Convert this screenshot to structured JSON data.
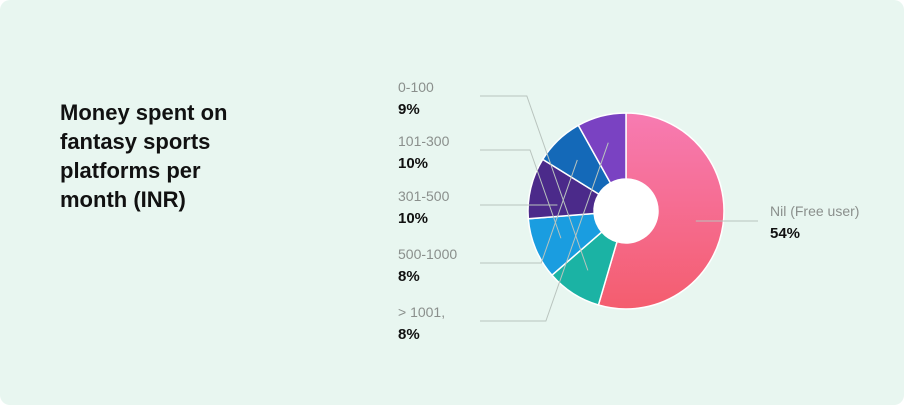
{
  "title": "Money spent on\nfantasy sports\nplatforms per\nmonth (INR)",
  "chart_data": {
    "type": "pie",
    "title": "Money spent on fantasy sports platforms per month (INR)",
    "categories": [
      "Nil (Free user)",
      "0-100",
      "101-300",
      "301-500",
      "500-1000",
      "> 1001,"
    ],
    "values": [
      54,
      9,
      10,
      10,
      8,
      8
    ],
    "value_labels": [
      "54%",
      "9%",
      "10%",
      "10%",
      "8%",
      "8%"
    ],
    "colors": [
      "#f45d7c",
      "#1bb3a4",
      "#1a9de0",
      "#4b2a8a",
      "#1469b8",
      "#7a42c2"
    ],
    "donut": true
  }
}
